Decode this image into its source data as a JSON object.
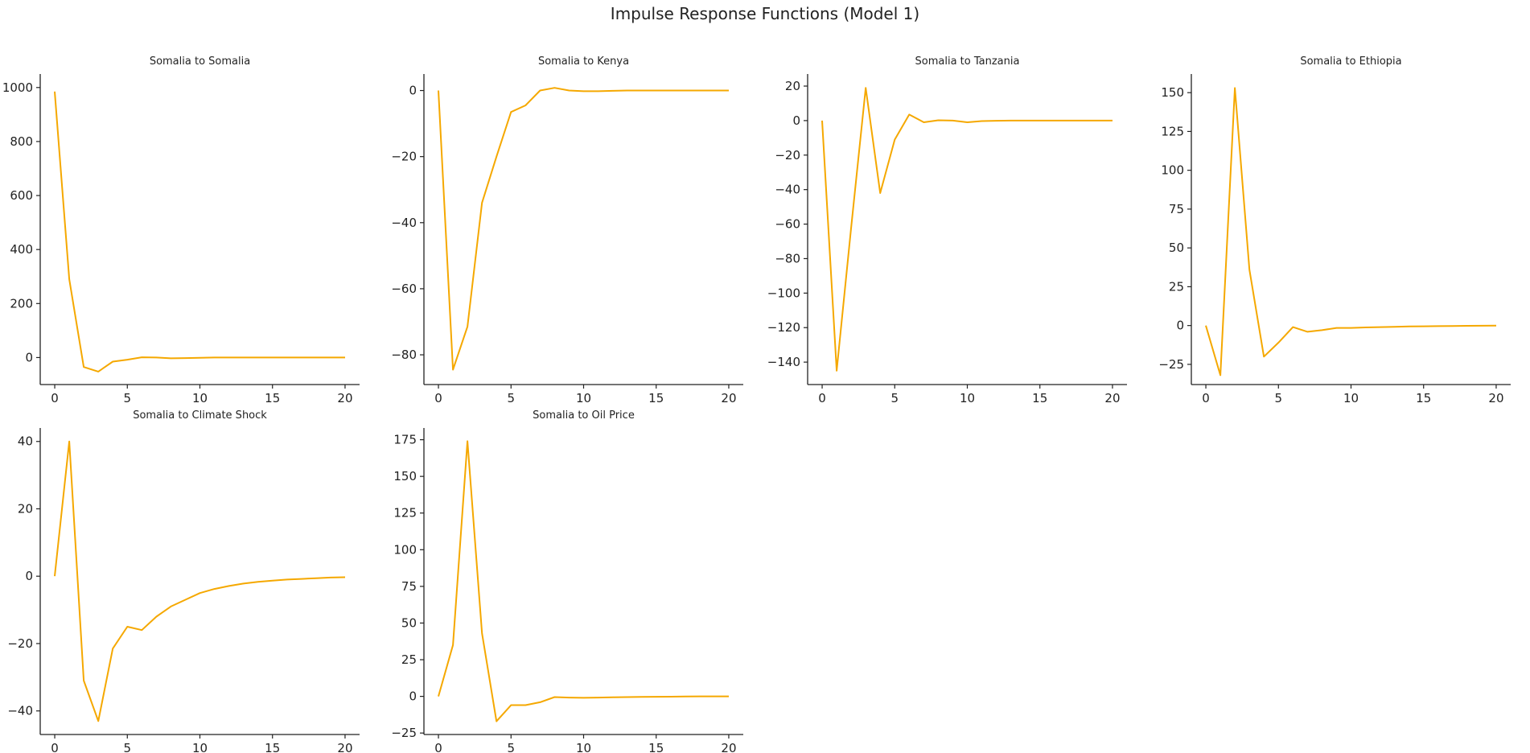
{
  "figure": {
    "title": "Impulse Response Functions (Model 1)",
    "line_color": "#F5A800"
  },
  "chart_data": [
    {
      "type": "line",
      "title": "Somalia to Somalia",
      "xlim": [
        0,
        20
      ],
      "ylim": [
        -100,
        1050
      ],
      "xticks": [
        0,
        5,
        10,
        15,
        20
      ],
      "yticks": [
        0,
        200,
        400,
        600,
        800,
        1000
      ],
      "x": [
        0,
        1,
        2,
        3,
        4,
        5,
        6,
        7,
        8,
        9,
        10,
        11,
        12,
        13,
        14,
        15,
        16,
        17,
        18,
        19,
        20
      ],
      "values": [
        985,
        290,
        -35,
        -52,
        -15,
        -8,
        1,
        0,
        -3,
        -2,
        -1,
        0,
        0,
        0,
        0,
        0,
        0,
        0,
        0,
        0,
        0
      ]
    },
    {
      "type": "line",
      "title": "Somalia to Kenya",
      "xlim": [
        0,
        20
      ],
      "ylim": [
        -89,
        5
      ],
      "xticks": [
        0,
        5,
        10,
        15,
        20
      ],
      "yticks": [
        -80,
        -60,
        -40,
        -20,
        0
      ],
      "x": [
        0,
        1,
        2,
        3,
        4,
        5,
        6,
        7,
        8,
        9,
        10,
        11,
        12,
        13,
        14,
        15,
        16,
        17,
        18,
        19,
        20
      ],
      "values": [
        0,
        -84.5,
        -71.5,
        -34,
        -20,
        -6.5,
        -4.5,
        0,
        0.8,
        0,
        -0.2,
        -0.2,
        -0.1,
        0,
        0,
        0,
        0,
        0,
        0,
        0,
        0
      ]
    },
    {
      "type": "line",
      "title": "Somalia to Tanzania",
      "xlim": [
        0,
        20
      ],
      "ylim": [
        -153,
        27
      ],
      "xticks": [
        0,
        5,
        10,
        15,
        20
      ],
      "yticks": [
        -140,
        -120,
        -100,
        -80,
        -60,
        -40,
        -20,
        0,
        20
      ],
      "x": [
        0,
        1,
        2,
        3,
        4,
        5,
        6,
        7,
        8,
        9,
        10,
        11,
        12,
        13,
        14,
        15,
        16,
        17,
        18,
        19,
        20
      ],
      "values": [
        0,
        -145,
        -62,
        19,
        -42,
        -11,
        3.5,
        -1,
        0.2,
        0,
        -1,
        -0.3,
        -0.1,
        0,
        0,
        0,
        0,
        0,
        0,
        0,
        0
      ]
    },
    {
      "type": "line",
      "title": "Somalia to Ethiopia",
      "xlim": [
        0,
        20
      ],
      "ylim": [
        -38,
        162
      ],
      "xticks": [
        0,
        5,
        10,
        15,
        20
      ],
      "yticks": [
        -25,
        0,
        25,
        50,
        75,
        100,
        125,
        150
      ],
      "x": [
        0,
        1,
        2,
        3,
        4,
        5,
        6,
        7,
        8,
        9,
        10,
        11,
        12,
        13,
        14,
        15,
        16,
        17,
        18,
        19,
        20
      ],
      "values": [
        0,
        -32,
        153,
        36,
        -20,
        -11,
        -1,
        -4,
        -3,
        -1.5,
        -1.5,
        -1.2,
        -1,
        -0.8,
        -0.6,
        -0.5,
        -0.4,
        -0.3,
        -0.2,
        -0.1,
        0
      ]
    },
    {
      "type": "line",
      "title": "Somalia to Climate Shock",
      "xlim": [
        0,
        20
      ],
      "ylim": [
        -47,
        44
      ],
      "xticks": [
        0,
        5,
        10,
        15,
        20
      ],
      "yticks": [
        -40,
        -20,
        0,
        20,
        40
      ],
      "x": [
        0,
        1,
        2,
        3,
        4,
        5,
        6,
        7,
        8,
        9,
        10,
        11,
        12,
        13,
        14,
        15,
        16,
        17,
        18,
        19,
        20
      ],
      "values": [
        0,
        40,
        -31,
        -43,
        -21.5,
        -15,
        -16,
        -12,
        -9,
        -7,
        -5,
        -3.8,
        -2.9,
        -2.2,
        -1.7,
        -1.3,
        -1,
        -0.8,
        -0.6,
        -0.4,
        -0.3
      ]
    },
    {
      "type": "line",
      "title": "Somalia to Oil Price",
      "xlim": [
        0,
        20
      ],
      "ylim": [
        -26,
        183
      ],
      "xticks": [
        0,
        5,
        10,
        15,
        20
      ],
      "yticks": [
        -25,
        0,
        25,
        50,
        75,
        100,
        125,
        150,
        175
      ],
      "x": [
        0,
        1,
        2,
        3,
        4,
        5,
        6,
        7,
        8,
        9,
        10,
        11,
        12,
        13,
        14,
        15,
        16,
        17,
        18,
        19,
        20
      ],
      "values": [
        0,
        35,
        174,
        43,
        -17,
        -6,
        -6,
        -4,
        -0.5,
        -0.8,
        -1,
        -0.8,
        -0.6,
        -0.5,
        -0.4,
        -0.3,
        -0.2,
        -0.1,
        0,
        0,
        0
      ]
    }
  ]
}
